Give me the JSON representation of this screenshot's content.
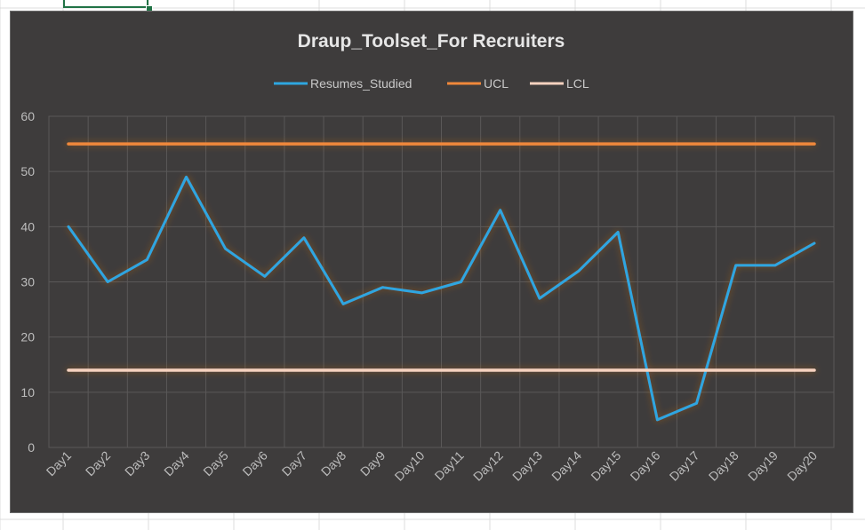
{
  "chart_data": {
    "type": "line",
    "title": "Draup_Toolset_For Recruiters",
    "categories": [
      "Day1",
      "Day2",
      "Day3",
      "Day4",
      "Day5",
      "Day6",
      "Day7",
      "Day8",
      "Day9",
      "Day10",
      "Day11",
      "Day12",
      "Day13",
      "Day14",
      "Day15",
      "Day16",
      "Day17",
      "Day18",
      "Day19",
      "Day20"
    ],
    "series": [
      {
        "name": "Resumes_Studied",
        "color": "#2ea6e0",
        "values": [
          40,
          30,
          34,
          49,
          36,
          31,
          38,
          26,
          29,
          28,
          30,
          43,
          27,
          32,
          39,
          5,
          8,
          33,
          33,
          37
        ]
      },
      {
        "name": "UCL",
        "color": "#f0883a",
        "values": [
          55,
          55,
          55,
          55,
          55,
          55,
          55,
          55,
          55,
          55,
          55,
          55,
          55,
          55,
          55,
          55,
          55,
          55,
          55,
          55
        ]
      },
      {
        "name": "LCL",
        "color": "#f6d2bf",
        "values": [
          14,
          14,
          14,
          14,
          14,
          14,
          14,
          14,
          14,
          14,
          14,
          14,
          14,
          14,
          14,
          14,
          14,
          14,
          14,
          14
        ]
      }
    ],
    "yticks": [
      "0",
      "10",
      "20",
      "30",
      "40",
      "50",
      "60"
    ],
    "ylim": [
      0,
      60
    ],
    "xlabel": "",
    "ylabel": "",
    "grid": true,
    "legend_position": "top",
    "background": "#3e3c3c",
    "grid_color": "#5a5858"
  }
}
